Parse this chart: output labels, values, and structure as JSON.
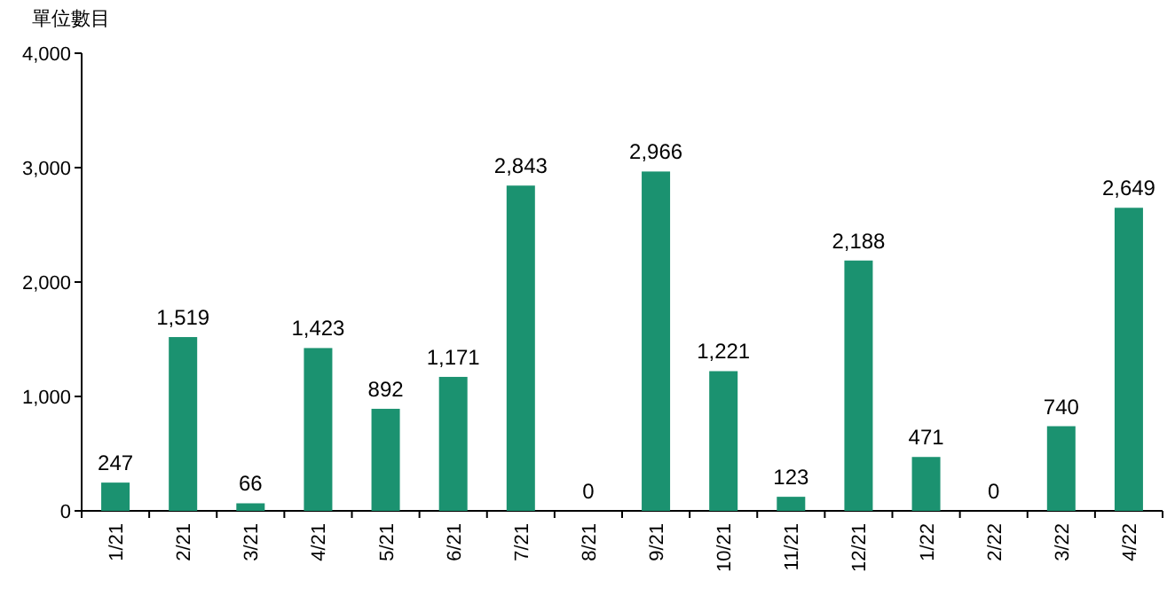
{
  "chart_data": {
    "type": "bar",
    "ylabel": "單位數目",
    "categories": [
      "1/21",
      "2/21",
      "3/21",
      "4/21",
      "5/21",
      "6/21",
      "7/21",
      "8/21",
      "9/21",
      "10/21",
      "11/21",
      "12/21",
      "1/22",
      "2/22",
      "3/22",
      "4/22"
    ],
    "values": [
      247,
      1519,
      66,
      1423,
      892,
      1171,
      2843,
      0,
      2966,
      1221,
      123,
      2188,
      471,
      0,
      740,
      2649
    ],
    "value_labels": [
      "247",
      "1,519",
      "66",
      "1,423",
      "892",
      "1,171",
      "2,843",
      "0",
      "2,966",
      "1,221",
      "123",
      "2,188",
      "471",
      "0",
      "740",
      "2,649"
    ],
    "color": "#1b9270",
    "ylim": [
      0,
      4000
    ],
    "yticks": [
      0,
      {
        "value": 1000,
        "label": "1,000"
      },
      {
        "value": 2000,
        "label": "2,000"
      },
      {
        "value": 3000,
        "label": "3,000"
      },
      {
        "value": 4000,
        "label": "4,000"
      }
    ]
  }
}
